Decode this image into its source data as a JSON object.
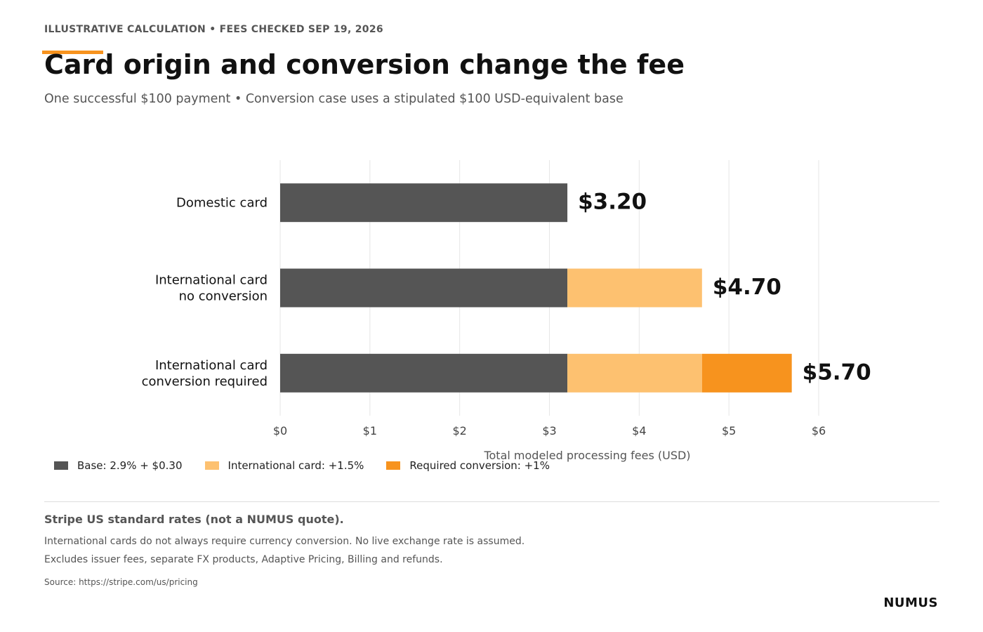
{
  "header": {
    "eyebrow": "ILLUSTRATIVE CALCULATION  •  FEES CHECKED SEP 19, 2026",
    "title": "Card origin and conversion change the fee",
    "subtitle": "One successful $100 payment • Conversion case uses a stipulated $100 USD-equivalent base"
  },
  "colors": {
    "accent": "#f7931e",
    "base": "#555555",
    "international": "#fdc170",
    "conversion": "#f7931e"
  },
  "chart_data": {
    "type": "bar",
    "orientation": "horizontal",
    "stacked": true,
    "categories": [
      [
        "Domestic card"
      ],
      [
        "International card",
        "no conversion"
      ],
      [
        "International card",
        "conversion required"
      ]
    ],
    "series": [
      {
        "name": "Base: 2.9% + $0.30",
        "color": "#555555",
        "values": [
          3.2,
          3.2,
          3.2
        ]
      },
      {
        "name": "International card: +1.5%",
        "color": "#fdc170",
        "values": [
          0,
          1.5,
          1.5
        ]
      },
      {
        "name": "Required conversion: +1%",
        "color": "#f7931e",
        "values": [
          0,
          0,
          1.0
        ]
      }
    ],
    "totals": [
      3.2,
      4.7,
      5.7
    ],
    "total_labels": [
      "$3.20",
      "$4.70",
      "$5.70"
    ],
    "xlim": [
      0,
      6
    ],
    "xticks": [
      0,
      1,
      2,
      3,
      4,
      5,
      6
    ],
    "xtick_labels": [
      "$0",
      "$1",
      "$2",
      "$3",
      "$4",
      "$5",
      "$6"
    ],
    "xlabel": "Total modeled processing fees (USD)",
    "ylabel": "",
    "grid": "vertical",
    "legend_position": "bottom-left"
  },
  "legend": [
    {
      "label": "Base: 2.9% + $0.30",
      "color": "#555555"
    },
    {
      "label": "International card: +1.5%",
      "color": "#fdc170"
    },
    {
      "label": "Required conversion: +1%",
      "color": "#f7931e"
    }
  ],
  "notes": {
    "heading": "Stripe US standard rates (not a NUMUS quote).",
    "lines": [
      "International cards do not always require currency conversion. No live exchange rate is assumed.",
      "Excludes issuer fees, separate FX products, Adaptive Pricing, Billing and refunds."
    ],
    "source": "Source: https://stripe.com/us/pricing"
  },
  "brand": "NUMUS"
}
